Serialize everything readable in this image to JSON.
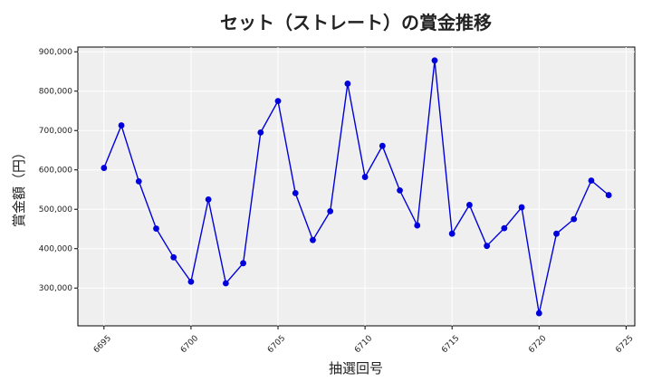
{
  "chart_data": {
    "type": "line",
    "title": "セット（ストレート）の賞金推移",
    "xlabel": "抽選回号",
    "ylabel": "賞金額（円）",
    "x": [
      6695,
      6696,
      6697,
      6698,
      6699,
      6700,
      6701,
      6702,
      6703,
      6704,
      6705,
      6706,
      6707,
      6708,
      6709,
      6710,
      6711,
      6712,
      6713,
      6714,
      6715,
      6716,
      6717,
      6718,
      6719,
      6720,
      6721,
      6722,
      6723,
      6724
    ],
    "series": [
      {
        "values": [
          605000,
          713000,
          571000,
          451000,
          378000,
          316000,
          525000,
          312000,
          363000,
          695000,
          775000,
          541000,
          422000,
          495000,
          819000,
          582000,
          661000,
          548000,
          459000,
          878000,
          438000,
          511000,
          407000,
          452000,
          505000,
          236000,
          438000,
          475000,
          573000,
          536000
        ]
      }
    ],
    "xticks": [
      "6695",
      "6700",
      "6705",
      "6710",
      "6715",
      "6720",
      "6725"
    ],
    "yticks": [
      "300,000",
      "400,000",
      "500,000",
      "600,000",
      "700,000",
      "800,000",
      "900,000"
    ],
    "xlim": [
      6693.5,
      6725.5
    ],
    "ylim": [
      204000,
      912000
    ],
    "grid": true,
    "line_color": "#0000dd",
    "plot_background": "#efefef"
  }
}
